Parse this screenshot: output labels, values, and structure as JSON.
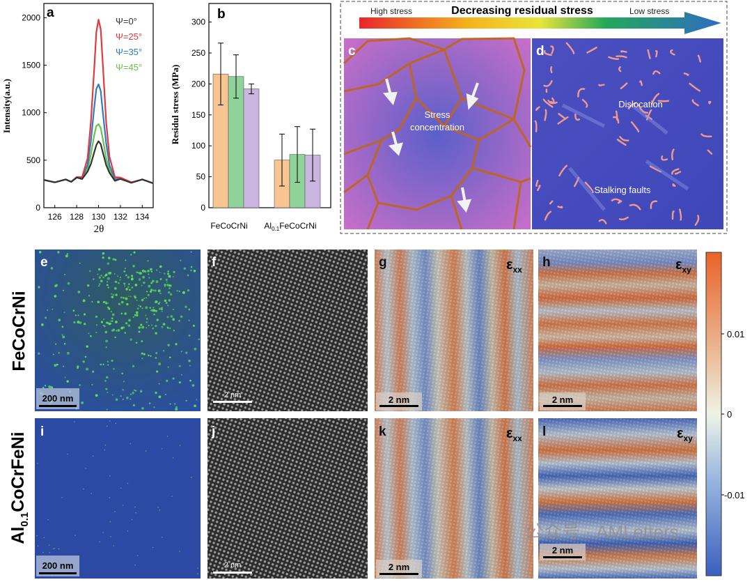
{
  "panel_a": {
    "letter": "a",
    "xlabel": "2θ",
    "ylabel": "Intensity(a.u.)",
    "xticks": [
      "126",
      "128",
      "130",
      "132",
      "134"
    ],
    "yticks": [
      "0",
      "500",
      "1000",
      "1500",
      "2000"
    ],
    "legend": [
      {
        "label": "Ψ=0°",
        "color": "#333333"
      },
      {
        "label": "Ψ=25°",
        "color": "#e0393e"
      },
      {
        "label": "Ψ=35°",
        "color": "#2e7bbf"
      },
      {
        "label": "Ψ=45°",
        "color": "#66c24a"
      }
    ]
  },
  "panel_b": {
    "letter": "b",
    "ylabel": "Residul stress (MPa)",
    "yticks": [
      "0",
      "50",
      "100",
      "150",
      "200",
      "250",
      "300"
    ],
    "group1": "FeCoCrNi",
    "group2_prefix": "Al",
    "group2_sub": "0.1",
    "group2_suffix": "FeCoCrNi",
    "colors": [
      "#f8c592",
      "#8fd39a",
      "#c9b5e0"
    ]
  },
  "panel_cd": {
    "header": "Decreasing residual stress",
    "high": "High stress",
    "low": "Low stress",
    "letter_c": "c",
    "letter_d": "d",
    "stress_1": "Stress",
    "stress_2": "concentration",
    "dislocation": "Dislocation",
    "faults": "Stalking faults"
  },
  "rows": {
    "row1_label": "FeCoCrNi",
    "row2_prefix": "Al",
    "row2_sub": "0.1",
    "row2_suffix": "CoCrFeNi"
  },
  "letters": {
    "e": "e",
    "f": "f",
    "g": "g",
    "h": "h",
    "i": "i",
    "j": "j",
    "k": "k",
    "l": "l"
  },
  "scalebars": {
    "e": "200 nm",
    "f": "2 nm",
    "g": "2 nm",
    "h": "2 nm",
    "i": "200 nm",
    "j": "2 nm",
    "k": "2 nm",
    "l": "2 nm"
  },
  "strain": {
    "xx_base": "ε",
    "xx_sub": "xx",
    "xy_base": "ε",
    "xy_sub": "xy"
  },
  "colorbar": {
    "ticks": [
      "0.01",
      "0",
      "-0.01"
    ]
  },
  "watermark": "公众号 · AMLetters",
  "chart_data": [
    {
      "type": "line",
      "title": "",
      "xlabel": "2θ",
      "ylabel": "Intensity(a.u.)",
      "xlim": [
        125,
        135
      ],
      "ylim": [
        0,
        2150
      ],
      "x": [
        125,
        126,
        127,
        127.5,
        128,
        128.5,
        129,
        129.3,
        129.6,
        129.8,
        130,
        130.2,
        130.4,
        130.7,
        131,
        131.5,
        132,
        133,
        134,
        135
      ],
      "series": [
        {
          "name": "Ψ=0°",
          "values": [
            275,
            285,
            280,
            290,
            300,
            320,
            380,
            460,
            580,
            660,
            700,
            670,
            580,
            450,
            350,
            300,
            285,
            280,
            280,
            275
          ]
        },
        {
          "name": "Ψ=25°",
          "values": [
            275,
            285,
            280,
            290,
            305,
            340,
            520,
            900,
            1450,
            1850,
            1980,
            1880,
            1500,
            900,
            520,
            340,
            300,
            285,
            280,
            275
          ]
        },
        {
          "name": "Ψ=35°",
          "values": [
            275,
            285,
            280,
            290,
            300,
            330,
            450,
            700,
            1050,
            1250,
            1300,
            1230,
            1000,
            680,
            430,
            320,
            290,
            280,
            280,
            275
          ]
        },
        {
          "name": "Ψ=45°",
          "values": [
            275,
            285,
            280,
            290,
            300,
            320,
            400,
            560,
            760,
            860,
            880,
            840,
            720,
            520,
            380,
            310,
            290,
            280,
            280,
            275
          ]
        }
      ]
    },
    {
      "type": "bar",
      "title": "",
      "ylabel": "Residul stress (MPa)",
      "ylim": [
        0,
        330
      ],
      "categories": [
        "FeCoCrNi",
        "Al0.1FeCoCrNi"
      ],
      "series": [
        {
          "values": [
            216,
            77
          ],
          "errors": [
            50,
            42
          ]
        },
        {
          "values": [
            212,
            86
          ],
          "errors": [
            35,
            45
          ]
        },
        {
          "values": [
            192,
            85
          ],
          "errors": [
            8,
            42
          ]
        }
      ]
    }
  ]
}
